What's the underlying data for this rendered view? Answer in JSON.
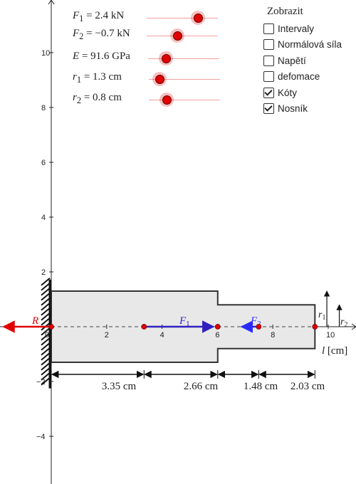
{
  "sliders": [
    {
      "id": "F1",
      "label_html": "<i>F</i><sub>1</sub> = 2.4 kN",
      "value": 2.4,
      "fraction": 0.72
    },
    {
      "id": "F2",
      "label_html": "<i>F</i><sub>2</sub> = −0.7 kN",
      "value": -0.7,
      "fraction": 0.43
    },
    {
      "id": "E",
      "label_html": "<i>E</i> = 91.6 GPa",
      "value": 91.6,
      "fraction": 0.25
    },
    {
      "id": "r1",
      "label_html": "<i>r</i><sub>1</sub> = 1.3 cm",
      "value": 1.3,
      "fraction": 0.15
    },
    {
      "id": "r2",
      "label_html": "<i>r</i><sub>2</sub> = 0.8 cm",
      "value": 0.8,
      "fraction": 0.25
    }
  ],
  "panel": {
    "title": "Zobrazit",
    "options": [
      {
        "label": "Intervaly",
        "checked": false
      },
      {
        "label": "Normálová síla",
        "checked": false
      },
      {
        "label": "Napětí",
        "checked": false
      },
      {
        "label": "defomace",
        "checked": false
      },
      {
        "label": "Kóty",
        "checked": true
      },
      {
        "label": "Nosník",
        "checked": true
      }
    ]
  },
  "axes": {
    "x_ticks": [
      0,
      2,
      4,
      6,
      8,
      10
    ],
    "y_ticks": [
      -4,
      -2,
      2,
      4,
      6,
      8,
      10
    ],
    "x_label": "l [cm]"
  },
  "beam": {
    "seg1_length": 6.01,
    "seg1_radius": 1.3,
    "seg2_length": 3.51,
    "seg2_radius": 0.8,
    "f1_position": 3.35,
    "f2_position": 7.49
  },
  "forces": {
    "R": "R",
    "F1": "F",
    "F1_sub": "1",
    "F2": "F",
    "F2_sub": "2"
  },
  "radius_labels": {
    "r1": "r",
    "r1_sub": "1",
    "r2": "r",
    "r2_sub": "2"
  },
  "dimensions": [
    "3.35 cm",
    "2.66 cm",
    "1.48 cm",
    "2.03 cm"
  ],
  "colors": {
    "beam_fill": "#e8e8e8",
    "beam_stroke": "#333333",
    "R": "#e00000",
    "F1": "#3020c0",
    "F2": "#2a2aff",
    "slider": "#e00000"
  }
}
